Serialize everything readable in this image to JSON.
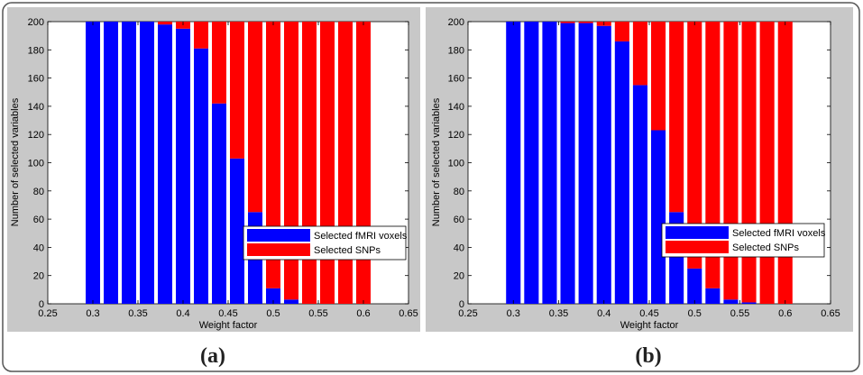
{
  "chart_data": [
    {
      "type": "bar",
      "stacked": true,
      "panel_label": "(a)",
      "xlabel": "Weight factor",
      "ylabel": "Number of selected variables",
      "xlim": [
        0.25,
        0.65
      ],
      "ylim": [
        0,
        200
      ],
      "xticks": [
        "0.25",
        "0.3",
        "0.35",
        "0.4",
        "0.45",
        "0.5",
        "0.55",
        "0.6",
        "0.65"
      ],
      "yticks": [
        "0",
        "20",
        "40",
        "60",
        "80",
        "100",
        "120",
        "140",
        "160",
        "180",
        "200"
      ],
      "grid": false,
      "legend_position": "bottom-right",
      "x": [
        0.3,
        0.32,
        0.34,
        0.36,
        0.38,
        0.4,
        0.42,
        0.44,
        0.46,
        0.48,
        0.5,
        0.52,
        0.54,
        0.56,
        0.58,
        0.6
      ],
      "series": [
        {
          "name": "Selected fMRI voxels",
          "color": "#0000ff",
          "values": [
            200,
            200,
            200,
            200,
            198,
            195,
            181,
            142,
            103,
            65,
            11,
            3,
            0,
            0,
            0,
            0
          ]
        },
        {
          "name": "Selected SNPs",
          "color": "#ff0000",
          "values": [
            0,
            0,
            0,
            0,
            2,
            5,
            19,
            58,
            97,
            135,
            189,
            197,
            200,
            200,
            200,
            200
          ]
        }
      ]
    },
    {
      "type": "bar",
      "stacked": true,
      "panel_label": "(b)",
      "xlabel": "Weight factor",
      "ylabel": "Number of selected variables",
      "xlim": [
        0.25,
        0.65
      ],
      "ylim": [
        0,
        200
      ],
      "xticks": [
        "0.25",
        "0.3",
        "0.35",
        "0.4",
        "0.45",
        "0.5",
        "0.55",
        "0.6",
        "0.65"
      ],
      "yticks": [
        "0",
        "20",
        "40",
        "60",
        "80",
        "100",
        "120",
        "140",
        "160",
        "180",
        "200"
      ],
      "grid": false,
      "legend_position": "bottom-right",
      "x": [
        0.3,
        0.32,
        0.34,
        0.36,
        0.38,
        0.4,
        0.42,
        0.44,
        0.46,
        0.48,
        0.5,
        0.52,
        0.54,
        0.56,
        0.58,
        0.6
      ],
      "series": [
        {
          "name": "Selected fMRI voxels",
          "color": "#0000ff",
          "values": [
            200,
            200,
            200,
            199,
            199,
            197,
            186,
            155,
            123,
            65,
            25,
            11,
            3,
            1,
            0,
            0
          ]
        },
        {
          "name": "Selected SNPs",
          "color": "#ff0000",
          "values": [
            0,
            0,
            0,
            1,
            1,
            3,
            14,
            45,
            77,
            135,
            175,
            189,
            197,
            199,
            200,
            200
          ]
        }
      ]
    }
  ]
}
